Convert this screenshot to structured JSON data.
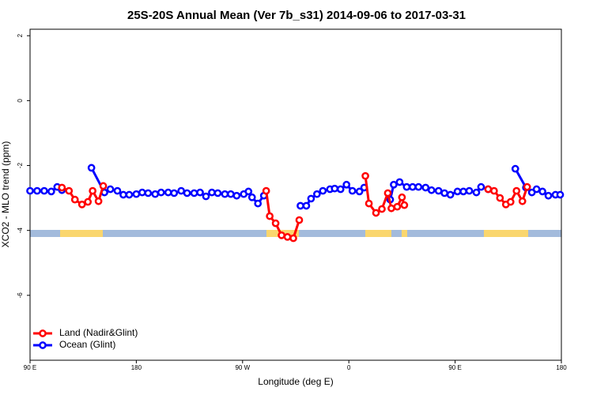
{
  "chart_data": {
    "type": "line",
    "title": "25S-20S Annual Mean (Ver 7b_s31)   2014-09-06 to 2017-03-31",
    "xlabel": "Longitude (deg E)",
    "ylabel": "XCO2 - MLO trend (ppm)",
    "xlim": [
      90,
      540
    ],
    "ylim": [
      -8,
      2.2
    ],
    "xticks": [
      {
        "value": 90,
        "label": "90 E"
      },
      {
        "value": 180,
        "label": "180"
      },
      {
        "value": 270,
        "label": "90 W"
      },
      {
        "value": 360,
        "label": "0"
      },
      {
        "value": 450,
        "label": "90 E"
      },
      {
        "value": 540,
        "label": "180"
      }
    ],
    "yticks": [
      2,
      0,
      -2,
      -4,
      -6
    ],
    "legend": "lower left",
    "series": [
      {
        "name": "Land (Nadir&Glint)",
        "color": "#ff0000",
        "x": [
          117,
          123,
          128,
          134,
          139,
          143,
          148,
          152,
          null,
          290,
          293,
          298,
          303,
          308,
          313,
          318,
          null,
          374,
          377,
          383,
          388,
          393,
          396,
          401,
          405,
          407,
          null,
          478,
          483,
          488,
          493,
          497,
          502,
          507,
          511
        ],
        "values": [
          -2.68,
          -2.78,
          -3.05,
          -3.2,
          -3.12,
          -2.78,
          -3.1,
          -2.63,
          null,
          -2.78,
          -3.56,
          -3.78,
          -4.15,
          -4.2,
          -4.24,
          -3.68,
          null,
          -2.32,
          -3.17,
          -3.46,
          -3.34,
          -2.85,
          -3.32,
          -3.27,
          -2.98,
          -3.22,
          null,
          -2.73,
          -2.78,
          -3.0,
          -3.2,
          -3.12,
          -2.78,
          -3.1,
          -2.66
        ]
      },
      {
        "name": "Ocean (Glint)",
        "color": "#0000ff",
        "x": [
          90,
          96,
          102,
          108,
          113,
          117,
          null,
          142,
          153,
          158,
          164,
          169,
          174,
          180,
          185,
          190,
          196,
          201,
          207,
          212,
          218,
          223,
          229,
          234,
          239,
          244,
          249,
          255,
          260,
          265,
          271,
          275,
          278,
          283,
          288,
          null,
          319,
          324,
          328,
          333,
          338,
          344,
          348,
          353,
          358,
          363,
          369,
          373,
          null,
          395,
          398,
          403,
          409,
          414,
          419,
          425,
          430,
          436,
          441,
          446,
          452,
          457,
          462,
          468,
          472,
          478,
          null,
          501,
          510,
          515,
          519,
          524,
          529,
          535,
          539
        ],
        "values": [
          -2.78,
          -2.78,
          -2.78,
          -2.8,
          -2.66,
          -2.76,
          null,
          -2.07,
          -2.83,
          -2.73,
          -2.78,
          -2.9,
          -2.9,
          -2.88,
          -2.83,
          -2.85,
          -2.88,
          -2.83,
          -2.83,
          -2.85,
          -2.78,
          -2.85,
          -2.85,
          -2.83,
          -2.95,
          -2.83,
          -2.85,
          -2.88,
          -2.88,
          -2.93,
          -2.88,
          -2.8,
          -2.98,
          -3.17,
          -2.93,
          null,
          -3.24,
          -3.24,
          -3.02,
          -2.88,
          -2.78,
          -2.73,
          -2.71,
          -2.73,
          -2.59,
          -2.78,
          -2.8,
          -2.68,
          null,
          -3.05,
          -2.59,
          -2.51,
          -2.66,
          -2.66,
          -2.66,
          -2.68,
          -2.76,
          -2.78,
          -2.85,
          -2.9,
          -2.8,
          -2.8,
          -2.78,
          -2.83,
          -2.66,
          -2.73,
          null,
          -2.1,
          -2.68,
          -2.83,
          -2.73,
          -2.8,
          -2.93,
          -2.9,
          -2.9
        ]
      }
    ]
  }
}
